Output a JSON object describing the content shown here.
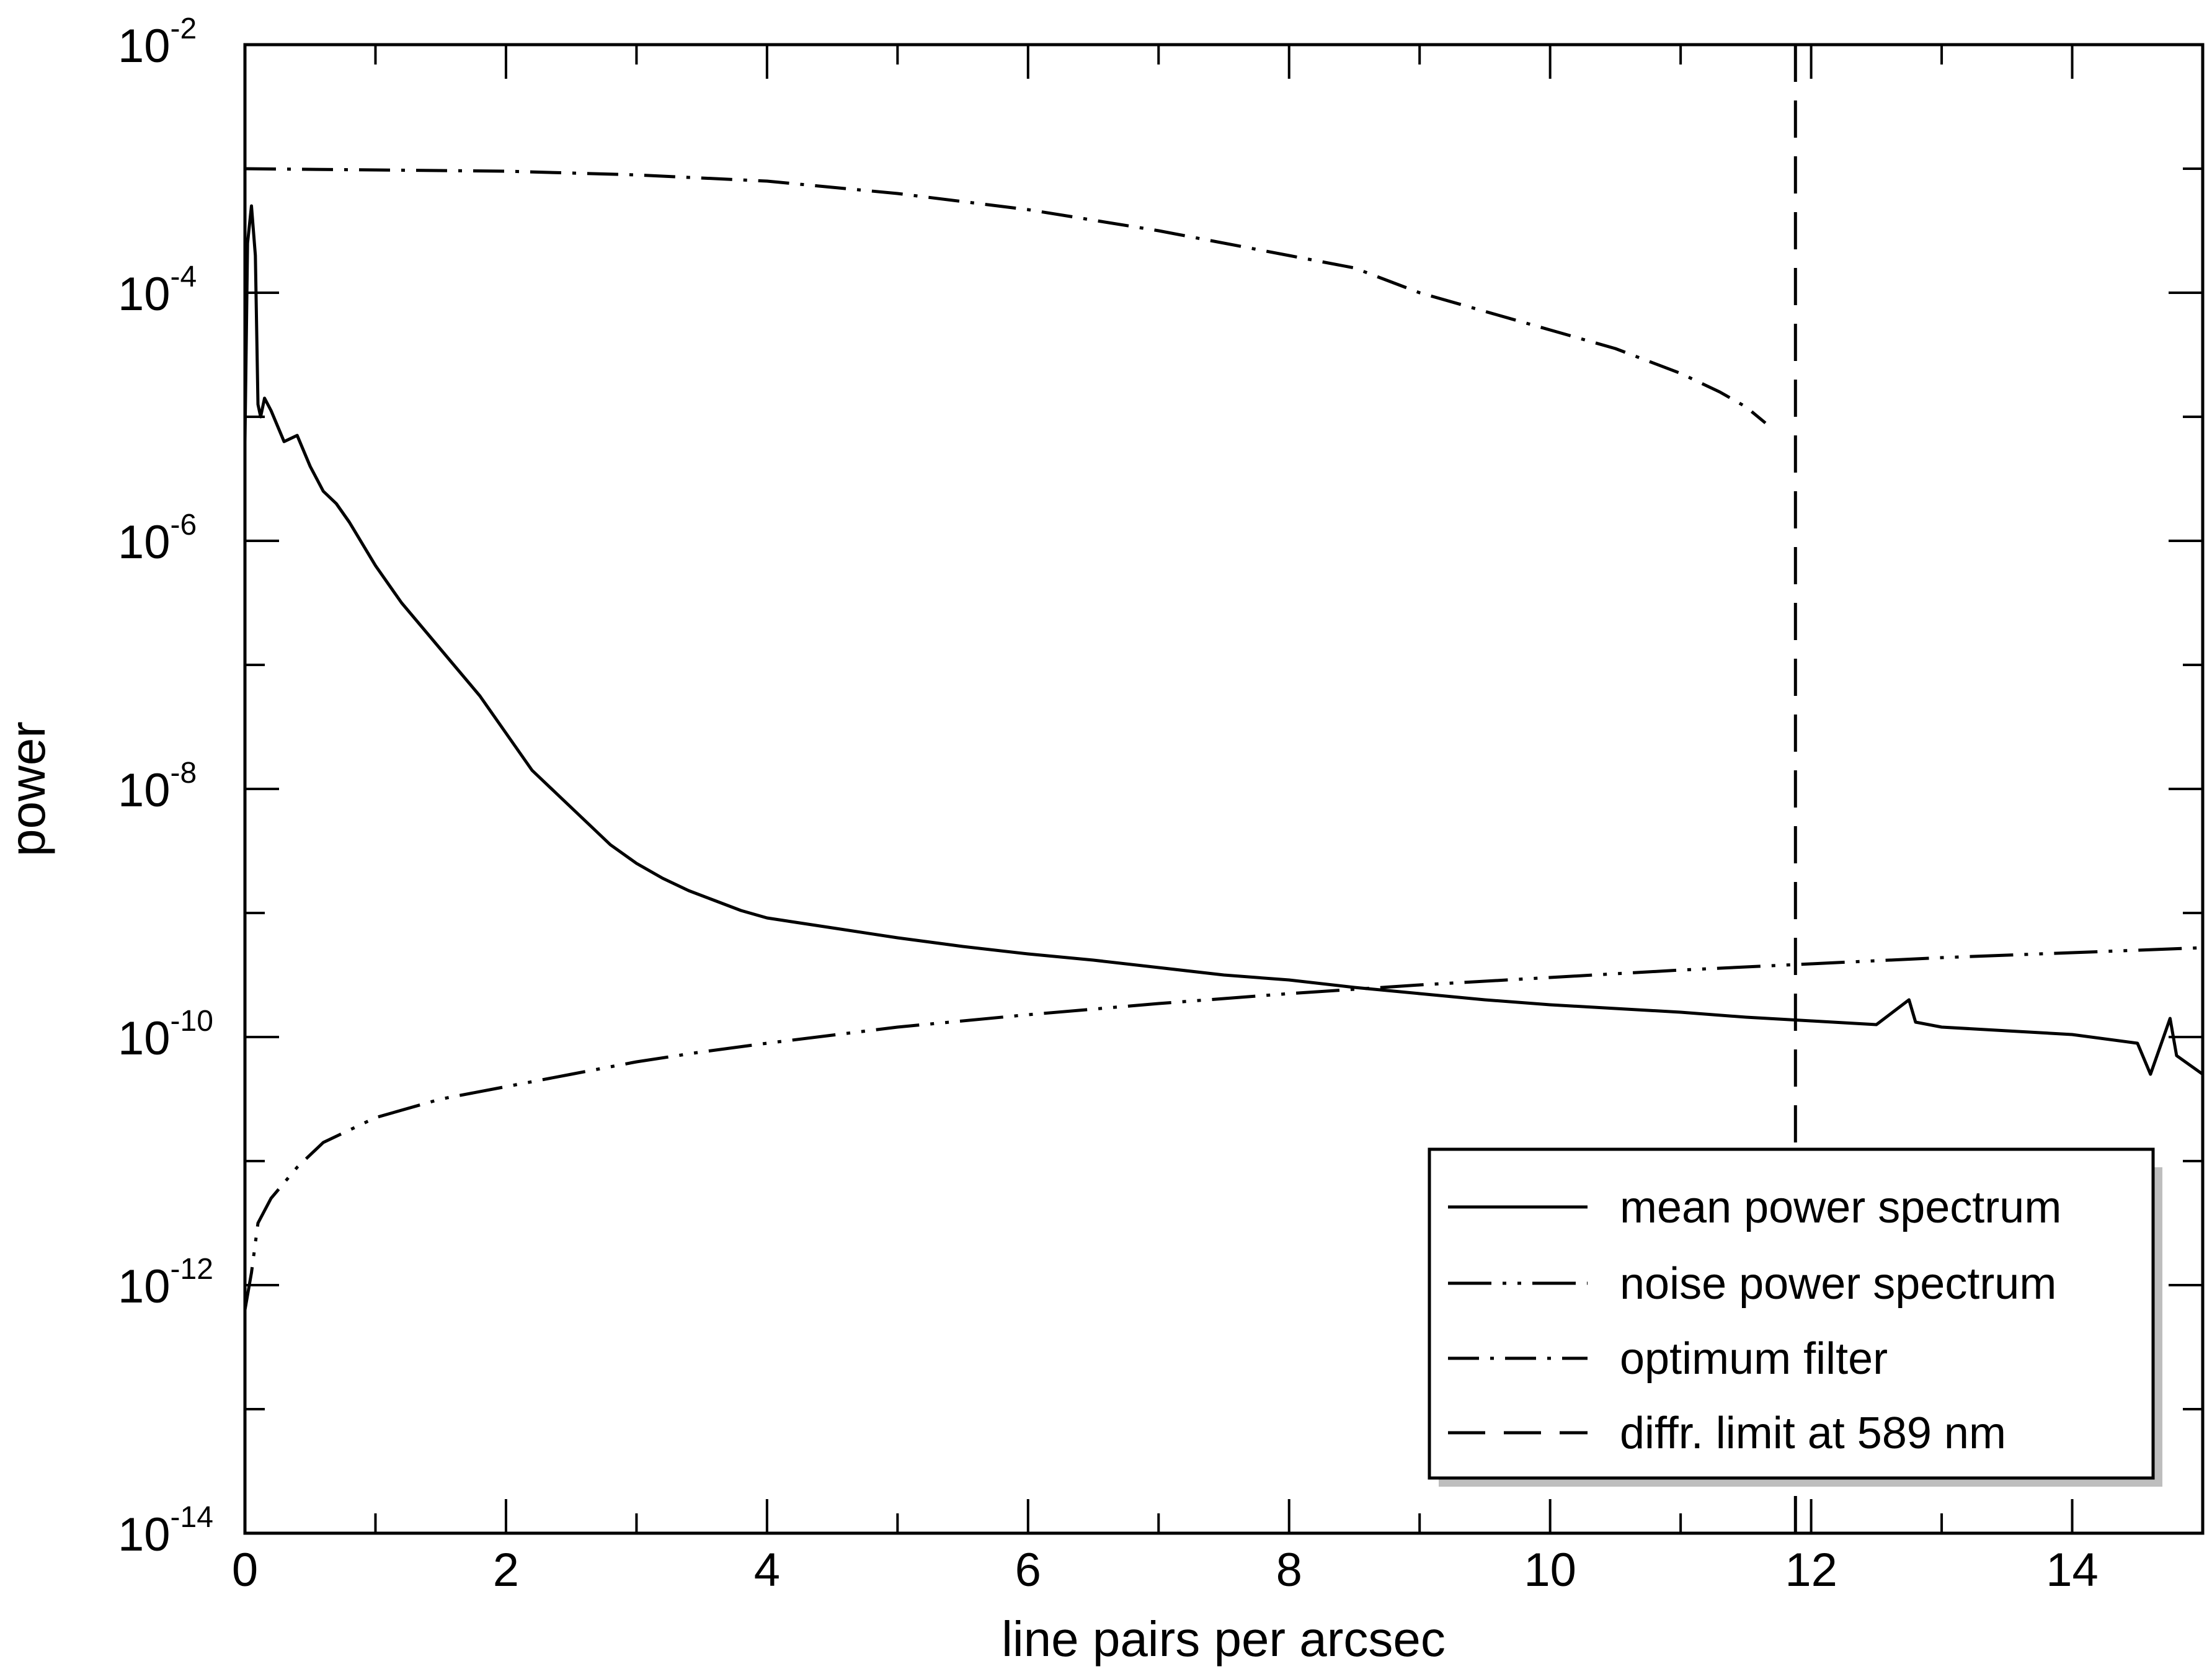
{
  "chart_data": {
    "type": "line",
    "xlabel": "line pairs per arcsec",
    "ylabel": "power",
    "xlim": [
      0,
      15
    ],
    "ylim_exp": [
      -14,
      -2
    ],
    "yscale": "log",
    "x_ticks": [
      {
        "v": 0,
        "label": "0"
      },
      {
        "v": 2,
        "label": "2"
      },
      {
        "v": 4,
        "label": "4"
      },
      {
        "v": 6,
        "label": "6"
      },
      {
        "v": 8,
        "label": "8"
      },
      {
        "v": 10,
        "label": "10"
      },
      {
        "v": 12,
        "label": "12"
      },
      {
        "v": 14,
        "label": "14"
      }
    ],
    "y_ticks": [
      {
        "e": -2,
        "base": "10",
        "exp": "-2"
      },
      {
        "e": -4,
        "base": "10",
        "exp": "-4"
      },
      {
        "e": -6,
        "base": "10",
        "exp": "-6"
      },
      {
        "e": -8,
        "base": "10",
        "exp": "-8"
      },
      {
        "e": -10,
        "base": "10",
        "exp": "-10"
      },
      {
        "e": -12,
        "base": "10",
        "exp": "-12"
      },
      {
        "e": -14,
        "base": "10",
        "exp": "-14"
      }
    ],
    "legend_position": "bottom-right",
    "series": [
      {
        "name": "mean power spectrum",
        "style": "solid",
        "points": [
          [
            0,
            -5.2
          ],
          [
            0.02,
            -3.6
          ],
          [
            0.05,
            -3.3
          ],
          [
            0.08,
            -3.7
          ],
          [
            0.1,
            -4.9
          ],
          [
            0.12,
            -5.0
          ],
          [
            0.15,
            -4.85
          ],
          [
            0.2,
            -4.95
          ],
          [
            0.3,
            -5.2
          ],
          [
            0.4,
            -5.15
          ],
          [
            0.5,
            -5.4
          ],
          [
            0.6,
            -5.6
          ],
          [
            0.7,
            -5.7
          ],
          [
            0.8,
            -5.85
          ],
          [
            1.0,
            -6.2
          ],
          [
            1.2,
            -6.5
          ],
          [
            1.4,
            -6.75
          ],
          [
            1.6,
            -7.0
          ],
          [
            1.8,
            -7.25
          ],
          [
            2.0,
            -7.55
          ],
          [
            2.2,
            -7.85
          ],
          [
            2.4,
            -8.05
          ],
          [
            2.6,
            -8.25
          ],
          [
            2.8,
            -8.45
          ],
          [
            3.0,
            -8.6
          ],
          [
            3.2,
            -8.72
          ],
          [
            3.4,
            -8.82
          ],
          [
            3.6,
            -8.9
          ],
          [
            3.8,
            -8.98
          ],
          [
            4.0,
            -9.04
          ],
          [
            4.5,
            -9.12
          ],
          [
            5.0,
            -9.2
          ],
          [
            5.5,
            -9.27
          ],
          [
            6.0,
            -9.33
          ],
          [
            6.5,
            -9.38
          ],
          [
            7.0,
            -9.44
          ],
          [
            7.5,
            -9.5
          ],
          [
            8.0,
            -9.54
          ],
          [
            8.5,
            -9.6
          ],
          [
            9.0,
            -9.65
          ],
          [
            9.5,
            -9.7
          ],
          [
            10.0,
            -9.74
          ],
          [
            10.5,
            -9.77
          ],
          [
            11.0,
            -9.8
          ],
          [
            11.5,
            -9.84
          ],
          [
            12.0,
            -9.87
          ],
          [
            12.5,
            -9.9
          ],
          [
            12.75,
            -9.7
          ],
          [
            12.8,
            -9.88
          ],
          [
            13.0,
            -9.92
          ],
          [
            13.5,
            -9.95
          ],
          [
            14.0,
            -9.98
          ],
          [
            14.5,
            -10.05
          ],
          [
            14.6,
            -10.3
          ],
          [
            14.7,
            -10.0
          ],
          [
            14.75,
            -9.85
          ],
          [
            14.8,
            -10.15
          ],
          [
            15.0,
            -10.3
          ]
        ]
      },
      {
        "name": "noise power spectrum",
        "style": "dash-dot-dot",
        "points": [
          [
            0,
            -12.2
          ],
          [
            0.05,
            -11.9
          ],
          [
            0.1,
            -11.5
          ],
          [
            0.2,
            -11.3
          ],
          [
            0.4,
            -11.05
          ],
          [
            0.6,
            -10.85
          ],
          [
            0.8,
            -10.75
          ],
          [
            1.0,
            -10.65
          ],
          [
            1.5,
            -10.5
          ],
          [
            2.0,
            -10.4
          ],
          [
            2.5,
            -10.3
          ],
          [
            3.0,
            -10.2
          ],
          [
            3.5,
            -10.12
          ],
          [
            4.0,
            -10.05
          ],
          [
            5.0,
            -9.92
          ],
          [
            6.0,
            -9.82
          ],
          [
            7.0,
            -9.73
          ],
          [
            8.0,
            -9.65
          ],
          [
            9.0,
            -9.58
          ],
          [
            10.0,
            -9.52
          ],
          [
            11.0,
            -9.46
          ],
          [
            12.0,
            -9.41
          ],
          [
            13.0,
            -9.36
          ],
          [
            14.0,
            -9.32
          ],
          [
            15.0,
            -9.28
          ]
        ]
      },
      {
        "name": "optimum filter",
        "style": "dash-dot",
        "points": [
          [
            0,
            -3.0
          ],
          [
            1.0,
            -3.01
          ],
          [
            2.0,
            -3.02
          ],
          [
            3.0,
            -3.05
          ],
          [
            4.0,
            -3.1
          ],
          [
            5.0,
            -3.2
          ],
          [
            6.0,
            -3.33
          ],
          [
            7.0,
            -3.5
          ],
          [
            8.0,
            -3.7
          ],
          [
            8.5,
            -3.8
          ],
          [
            9.0,
            -4.0
          ],
          [
            10.0,
            -4.3
          ],
          [
            10.5,
            -4.45
          ],
          [
            11.0,
            -4.65
          ],
          [
            11.3,
            -4.8
          ],
          [
            11.5,
            -4.92
          ],
          [
            11.65,
            -5.05
          ]
        ]
      },
      {
        "name": "diffr. limit at 589 nm",
        "style": "long-dash",
        "points": [
          [
            11.88,
            -2.0
          ],
          [
            11.88,
            -14.0
          ]
        ]
      }
    ]
  }
}
